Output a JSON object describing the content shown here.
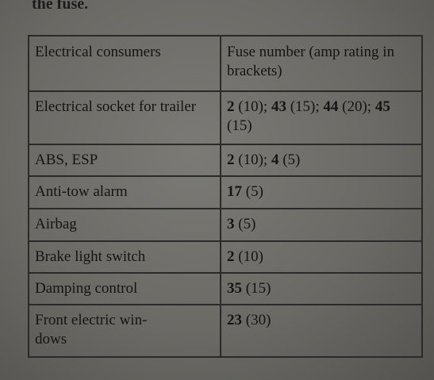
{
  "caption": "the fuse.",
  "table": {
    "headers": [
      "Electrical consumers",
      "Fuse number (amp rating in brackets)"
    ],
    "rows": [
      {
        "consumer": "Electrical socket for trailer",
        "fuses": [
          {
            "number": "2",
            "amps": "(10)",
            "sep": "; "
          },
          {
            "number": "43",
            "amps": "(15)",
            "sep": "; "
          },
          {
            "number": "44",
            "amps": "(20)",
            "sep": "; "
          },
          {
            "number": "45",
            "amps": "(15)",
            "sep": ""
          }
        ]
      },
      {
        "consumer": "ABS, ESP",
        "fuses": [
          {
            "number": "2",
            "amps": "(10)",
            "sep": "; "
          },
          {
            "number": "4",
            "amps": "(5)",
            "sep": ""
          }
        ]
      },
      {
        "consumer": "Anti-tow alarm",
        "fuses": [
          {
            "number": "17",
            "amps": "(5)",
            "sep": ""
          }
        ]
      },
      {
        "consumer": "Airbag",
        "fuses": [
          {
            "number": "3",
            "amps": "(5)",
            "sep": ""
          }
        ]
      },
      {
        "consumer": "Brake light switch",
        "fuses": [
          {
            "number": "2",
            "amps": "(10)",
            "sep": ""
          }
        ]
      },
      {
        "consumer": "Damping control",
        "fuses": [
          {
            "number": "35",
            "amps": "(15)",
            "sep": ""
          }
        ]
      },
      {
        "consumer": "Front electric win-dows",
        "fuses": [
          {
            "number": "23",
            "amps": "(30)",
            "sep": ""
          }
        ]
      }
    ]
  }
}
